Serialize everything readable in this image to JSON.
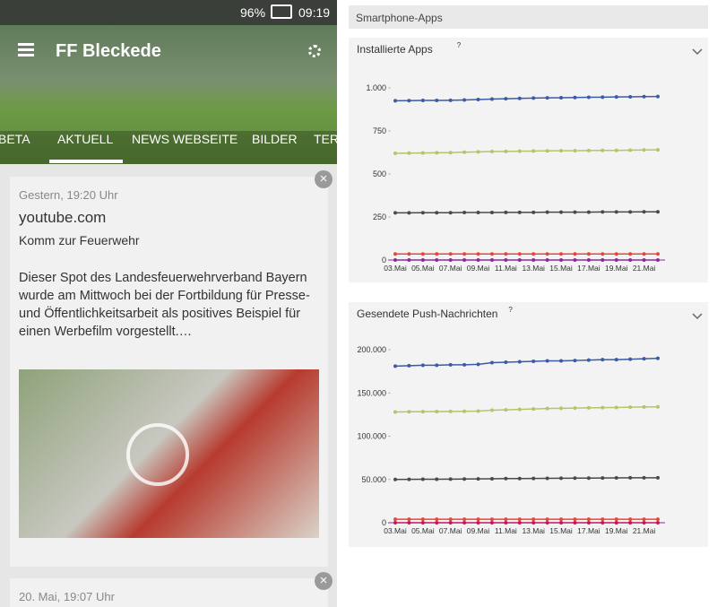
{
  "app": {
    "status": {
      "battery": "96%",
      "time": "09:19"
    },
    "header": {
      "title": "FF Bleckede"
    },
    "tabs": [
      "BETA",
      "AKTUELL",
      "NEWS WEBSEITE",
      "BILDER",
      "TER"
    ],
    "cards": [
      {
        "date": "Gestern, 19:20 Uhr",
        "source": "youtube.com",
        "heading": "Komm zur Feuerwehr",
        "body": "Dieser Spot des Landesfeuerwehrverband Bayern wurde am Mittwoch bei der Fortbildung für Presse- und Öffentlichkeitsarbeit als positives Beispiel für einen Werbefilm vorgestellt.…"
      },
      {
        "date": "20. Mai, 19:07 Uhr"
      }
    ],
    "section": "Smartphone-Apps"
  },
  "chart_data": [
    {
      "type": "line",
      "title": "Installierte Apps",
      "info": "?",
      "categories": [
        "03.Mai",
        null,
        "05.Mai",
        null,
        "07.Mai",
        null,
        "09.Mai",
        null,
        "11.Mai",
        null,
        "13.Mai",
        null,
        "15.Mai",
        null,
        "17.Mai",
        null,
        "19.Mai",
        null,
        "21.Mai",
        null
      ],
      "ylim": [
        0,
        1000
      ],
      "yticks": [
        0,
        250,
        500,
        750,
        {
          "value": 1000,
          "label": "1.000"
        }
      ],
      "series": [
        {
          "color": "#3b5ba5",
          "values": [
            925,
            926,
            927,
            927,
            928,
            930,
            932,
            935,
            937,
            939,
            941,
            942,
            943,
            944,
            945,
            946,
            947,
            948,
            949,
            950
          ]
        },
        {
          "color": "#b5c46a",
          "values": [
            620,
            621,
            622,
            623,
            624,
            626,
            628,
            630,
            631,
            632,
            633,
            634,
            635,
            635,
            636,
            637,
            637,
            638,
            639,
            640
          ]
        },
        {
          "color": "#4a4a4a",
          "values": [
            274,
            274,
            275,
            275,
            275,
            276,
            276,
            276,
            277,
            277,
            277,
            278,
            278,
            278,
            278,
            279,
            279,
            279,
            280,
            280
          ]
        },
        {
          "color": "#e8453c",
          "values": [
            35,
            35,
            35,
            35,
            35,
            35,
            35,
            35,
            35,
            35,
            35,
            35,
            35,
            35,
            35,
            35,
            35,
            35,
            35,
            35
          ]
        },
        {
          "color": "#8b2a9b",
          "values": [
            0,
            0,
            0,
            0,
            0,
            0,
            0,
            0,
            0,
            0,
            0,
            0,
            0,
            0,
            0,
            0,
            0,
            0,
            0,
            0
          ]
        }
      ]
    },
    {
      "type": "line",
      "title": "Gesendete Push-Nachrichten",
      "info": "?",
      "categories": [
        "03.Mai",
        null,
        "05.Mai",
        null,
        "07.Mai",
        null,
        "09.Mai",
        null,
        "11.Mai",
        null,
        "13.Mai",
        null,
        "15.Mai",
        null,
        "17.Mai",
        null,
        "19.Mai",
        null,
        "21.Mai",
        null
      ],
      "ylim": [
        0,
        200000
      ],
      "yticks": [
        0,
        {
          "value": 50000,
          "label": "50.000"
        },
        {
          "value": 100000,
          "label": "100.000"
        },
        {
          "value": 150000,
          "label": "150.000"
        },
        {
          "value": 200000,
          "label": "200.000"
        }
      ],
      "series": [
        {
          "color": "#3b5ba5",
          "values": [
            181000,
            181500,
            182000,
            182000,
            182500,
            182500,
            183000,
            185000,
            185500,
            186000,
            186500,
            187000,
            187000,
            187500,
            188000,
            188500,
            188500,
            189000,
            189500,
            190000
          ]
        },
        {
          "color": "#b5c46a",
          "values": [
            128000,
            128200,
            128400,
            128500,
            128600,
            128800,
            129000,
            130000,
            130500,
            131000,
            131500,
            132000,
            132200,
            132500,
            132800,
            133000,
            133200,
            133500,
            133800,
            134000
          ]
        },
        {
          "color": "#4a4a4a",
          "values": [
            50000,
            50100,
            50200,
            50300,
            50400,
            50500,
            50600,
            50800,
            51000,
            51100,
            51200,
            51300,
            51400,
            51500,
            51600,
            51700,
            51800,
            51900,
            52000,
            52000
          ]
        },
        {
          "color": "#e8453c",
          "values": [
            4000,
            4000,
            4000,
            4000,
            4000,
            4000,
            4000,
            4000,
            4000,
            4000,
            4000,
            4000,
            4000,
            4000,
            4000,
            4000,
            4000,
            4000,
            4000,
            4000
          ]
        },
        {
          "color": "#c2185b",
          "values": [
            0,
            0,
            0,
            0,
            0,
            0,
            0,
            0,
            0,
            0,
            0,
            0,
            0,
            0,
            0,
            0,
            0,
            0,
            0,
            0
          ]
        }
      ]
    }
  ]
}
